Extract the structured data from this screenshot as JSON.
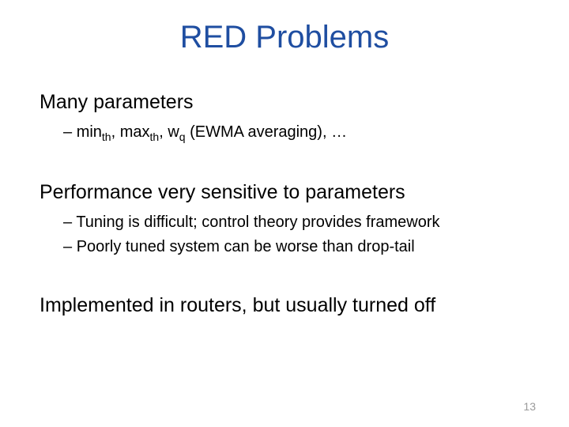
{
  "title": "RED Problems",
  "sections": [
    {
      "heading": "Many parameters",
      "items": [
        {
          "type": "formula",
          "prefix": "min",
          "sub1": "th",
          "mid1": ", max",
          "sub2": "th",
          "mid2": ", w",
          "sub3": "q",
          "suffix": " (EWMA averaging), …"
        }
      ]
    },
    {
      "heading": "Performance very sensitive to parameters",
      "items": [
        {
          "type": "text",
          "text": "Tuning is difficult; control theory provides framework"
        },
        {
          "type": "text",
          "text": "Poorly tuned system can be worse than drop-tail"
        }
      ]
    },
    {
      "heading": "Implemented in routers, but usually turned off",
      "items": []
    }
  ],
  "page_number": "13",
  "colors": {
    "title": "#1f4ea1",
    "text": "#000000",
    "page_num": "#9a9a9a",
    "background": "#ffffff"
  },
  "fonts": {
    "title_size": 40,
    "main_size": 25,
    "sub_size": 20,
    "pagenum_size": 14
  }
}
